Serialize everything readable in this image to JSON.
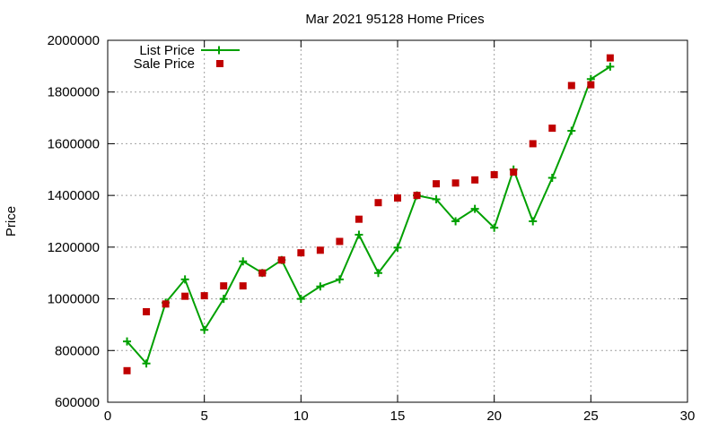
{
  "chart_data": {
    "type": "line",
    "title": "Mar 2021 95128 Home Prices",
    "xlabel": "",
    "ylabel": "Price",
    "xlim": [
      0,
      30
    ],
    "ylim": [
      600000,
      2000000
    ],
    "xticks": [
      0,
      5,
      10,
      15,
      20,
      25,
      30
    ],
    "yticks": [
      600000,
      800000,
      1000000,
      1200000,
      1400000,
      1600000,
      1800000,
      2000000
    ],
    "grid": true,
    "legend_position": "top-left",
    "series": [
      {
        "name": "List Price",
        "style": "line-plus",
        "color": "#00a000",
        "x": [
          1,
          2,
          3,
          4,
          5,
          6,
          7,
          8,
          9,
          10,
          11,
          12,
          13,
          14,
          15,
          16,
          17,
          18,
          19,
          20,
          21,
          22,
          23,
          24,
          25,
          26
        ],
        "y": [
          835000,
          750000,
          985000,
          1075000,
          880000,
          1000000,
          1145000,
          1100000,
          1150000,
          1000000,
          1048000,
          1075000,
          1248000,
          1100000,
          1198000,
          1400000,
          1385000,
          1300000,
          1348000,
          1275000,
          1500000,
          1300000,
          1468000,
          1650000,
          1850000,
          1898000
        ]
      },
      {
        "name": "Sale Price",
        "style": "square",
        "color": "#c00000",
        "x": [
          1,
          2,
          3,
          4,
          5,
          6,
          7,
          8,
          9,
          10,
          11,
          12,
          13,
          14,
          15,
          16,
          17,
          18,
          19,
          20,
          21,
          22,
          23,
          24,
          25,
          26
        ],
        "y": [
          722000,
          950000,
          980000,
          1010000,
          1012000,
          1050000,
          1050000,
          1100000,
          1150000,
          1178000,
          1188000,
          1222000,
          1308000,
          1372000,
          1390000,
          1400000,
          1445000,
          1448000,
          1460000,
          1480000,
          1490000,
          1600000,
          1660000,
          1825000,
          1828000,
          1932000
        ]
      }
    ]
  }
}
